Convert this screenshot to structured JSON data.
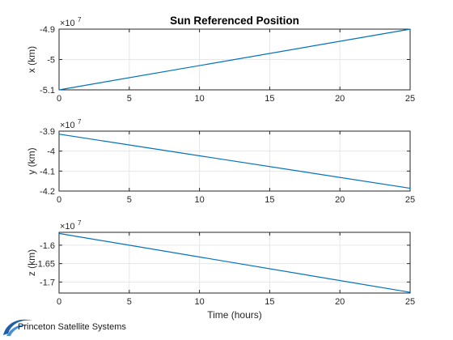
{
  "chart_data": {
    "title": "Sun Referenced Position",
    "xlabel": "Time (hours)",
    "grid": true,
    "type": "line",
    "subplots": [
      {
        "type": "line",
        "ylabel": "x (km)",
        "exponent_label": "×10",
        "exponent_power": "7",
        "xlim": [
          0,
          25
        ],
        "ylim": [
          -5.1,
          -4.9
        ],
        "xticks": [
          "0",
          "5",
          "10",
          "15",
          "20",
          "25"
        ],
        "yticks": [
          "-4.9",
          "-5",
          "-5.1"
        ],
        "ytick_values": [
          -4.9,
          -5.0,
          -5.1
        ],
        "x": [
          0,
          25
        ],
        "y": [
          -5.1,
          -4.9
        ],
        "color": "#0072BD"
      },
      {
        "type": "line",
        "ylabel": "y (km)",
        "exponent_label": "×10",
        "exponent_power": "7",
        "xlim": [
          0,
          25
        ],
        "ylim": [
          -4.2,
          -3.9
        ],
        "xticks": [
          "0",
          "5",
          "10",
          "15",
          "20",
          "25"
        ],
        "yticks": [
          "-3.9",
          "-4",
          "-4.1",
          "-4.2"
        ],
        "ytick_values": [
          -3.9,
          -4.0,
          -4.1,
          -4.2
        ],
        "x": [
          0,
          25
        ],
        "y": [
          -3.915,
          -4.186
        ],
        "color": "#0072BD"
      },
      {
        "type": "line",
        "ylabel": "z (km)",
        "exponent_label": "×10",
        "exponent_power": "7",
        "xlim": [
          0,
          25
        ],
        "ylim": [
          -1.73,
          -1.565
        ],
        "xticks": [
          "0",
          "5",
          "10",
          "15",
          "20",
          "25"
        ],
        "yticks": [
          "-1.6",
          "-1.65",
          "-1.7"
        ],
        "ytick_values": [
          -1.6,
          -1.65,
          -1.7
        ],
        "x": [
          0,
          25
        ],
        "y": [
          -1.568,
          -1.728
        ],
        "color": "#0072BD"
      }
    ]
  },
  "logo": {
    "text": "Princeton Satellite Systems",
    "icon": "pss-swoosh-logo"
  }
}
